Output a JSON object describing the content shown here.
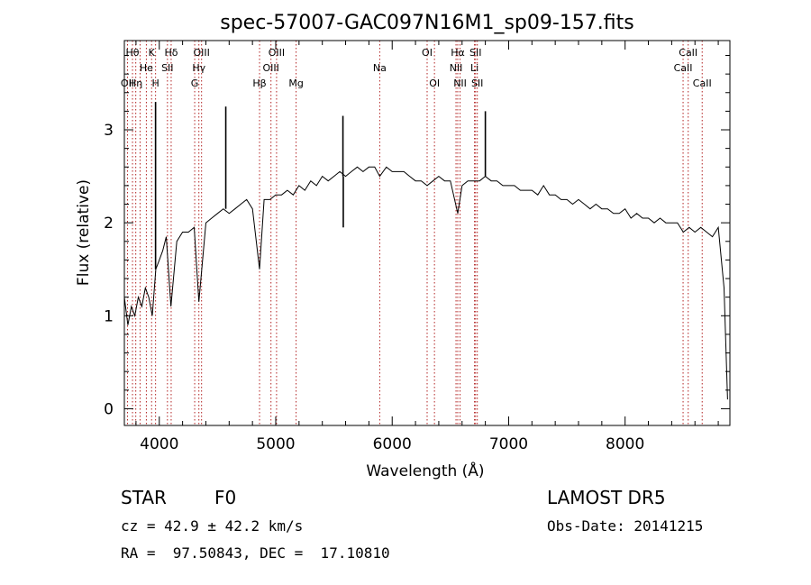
{
  "chart_data": {
    "type": "line",
    "title": "spec-57007-GAC097N16M1_sp09-157.fits",
    "xlabel": "Wavelength (Å)",
    "ylabel": "Flux (relative)",
    "xlim": [
      3700,
      8900
    ],
    "ylim": [
      -0.18,
      3.96
    ],
    "xticks": [
      4000,
      5000,
      6000,
      7000,
      8000
    ],
    "yticks": [
      0,
      1,
      2,
      3
    ],
    "grid": false,
    "line_color": "#000000",
    "marker_color": "#b22222",
    "series": [
      {
        "x": [
          3700,
          3730,
          3760,
          3790,
          3820,
          3850,
          3880,
          3910,
          3940,
          3970,
          4000,
          4030,
          4060,
          4100,
          4150,
          4200,
          4250,
          4300,
          4340,
          4400,
          4450,
          4500,
          4550,
          4600,
          4650,
          4700,
          4750,
          4800,
          4861,
          4900,
          4950,
          5000,
          5050,
          5100,
          5150,
          5200,
          5250,
          5300,
          5350,
          5400,
          5450,
          5500,
          5550,
          5600,
          5650,
          5700,
          5750,
          5800,
          5850,
          5893,
          5950,
          6000,
          6050,
          6100,
          6150,
          6200,
          6250,
          6300,
          6350,
          6400,
          6450,
          6500,
          6563,
          6600,
          6650,
          6700,
          6750,
          6800,
          6850,
          6900,
          6950,
          7000,
          7050,
          7100,
          7150,
          7200,
          7250,
          7300,
          7350,
          7400,
          7450,
          7500,
          7550,
          7600,
          7650,
          7700,
          7750,
          7800,
          7850,
          7900,
          7950,
          8000,
          8050,
          8100,
          8150,
          8200,
          8250,
          8300,
          8350,
          8400,
          8450,
          8500,
          8550,
          8600,
          8650,
          8700,
          8750,
          8800,
          8850,
          8880
        ],
        "y": [
          1.2,
          0.9,
          1.1,
          1.0,
          1.2,
          1.1,
          1.3,
          1.2,
          1.0,
          1.5,
          1.6,
          1.7,
          1.85,
          1.1,
          1.8,
          1.9,
          1.9,
          1.95,
          1.15,
          2.0,
          2.05,
          2.1,
          2.15,
          2.1,
          2.15,
          2.2,
          2.25,
          2.15,
          1.5,
          2.25,
          2.25,
          2.3,
          2.3,
          2.35,
          2.3,
          2.4,
          2.35,
          2.45,
          2.4,
          2.5,
          2.45,
          2.5,
          2.55,
          2.5,
          2.55,
          2.6,
          2.55,
          2.6,
          2.6,
          2.5,
          2.6,
          2.55,
          2.55,
          2.55,
          2.5,
          2.45,
          2.45,
          2.4,
          2.45,
          2.5,
          2.45,
          2.45,
          2.1,
          2.4,
          2.45,
          2.45,
          2.45,
          2.5,
          2.45,
          2.45,
          2.4,
          2.4,
          2.4,
          2.35,
          2.35,
          2.35,
          2.3,
          2.4,
          2.3,
          2.3,
          2.25,
          2.25,
          2.2,
          2.25,
          2.2,
          2.15,
          2.2,
          2.15,
          2.15,
          2.1,
          2.1,
          2.15,
          2.05,
          2.1,
          2.05,
          2.05,
          2.0,
          2.05,
          2.0,
          2.0,
          2.0,
          1.9,
          1.95,
          1.9,
          1.95,
          1.9,
          1.85,
          1.95,
          1.3,
          0.1
        ]
      }
    ],
    "spikes": [
      {
        "x": 4571,
        "y": 3.25
      },
      {
        "x": 5577,
        "y": 3.15
      },
      {
        "x": 5580,
        "y": 1.95
      },
      {
        "x": 6800,
        "y": 3.2
      },
      {
        "x": 3968,
        "y": 3.3
      }
    ],
    "lines": [
      {
        "x": 3727,
        "label": "OII",
        "row": 2
      },
      {
        "x": 3770,
        "label": "Hθ",
        "row": 0
      },
      {
        "x": 3798,
        "label": "Hη",
        "row": 2
      },
      {
        "x": 3835,
        "label": "",
        "row": 0
      },
      {
        "x": 3889,
        "label": "He",
        "row": 1
      },
      {
        "x": 3934,
        "label": "K",
        "row": 0
      },
      {
        "x": 3968,
        "label": "H",
        "row": 2
      },
      {
        "x": 4070,
        "label": "SII",
        "row": 1
      },
      {
        "x": 4102,
        "label": "Hδ",
        "row": 0
      },
      {
        "x": 4304,
        "label": "G",
        "row": 2
      },
      {
        "x": 4340,
        "label": "Hγ",
        "row": 1
      },
      {
        "x": 4363,
        "label": "OIII",
        "row": 0
      },
      {
        "x": 4861,
        "label": "Hβ",
        "row": 2
      },
      {
        "x": 4959,
        "label": "OIII",
        "row": 1
      },
      {
        "x": 5007,
        "label": "OIII",
        "row": 0
      },
      {
        "x": 5175,
        "label": "Mg",
        "row": 2
      },
      {
        "x": 5893,
        "label": "Na",
        "row": 1
      },
      {
        "x": 6300,
        "label": "OI",
        "row": 0
      },
      {
        "x": 6363,
        "label": "OI",
        "row": 2
      },
      {
        "x": 6548,
        "label": "NII",
        "row": 1
      },
      {
        "x": 6563,
        "label": "Hα",
        "row": 0
      },
      {
        "x": 6583,
        "label": "NII",
        "row": 2
      },
      {
        "x": 6716,
        "label": "SII",
        "row": 0
      },
      {
        "x": 6707,
        "label": "Li",
        "row": 1
      },
      {
        "x": 6731,
        "label": "SII",
        "row": 2
      },
      {
        "x": 8498,
        "label": "CaII",
        "row": 1
      },
      {
        "x": 8542,
        "label": "CaII",
        "row": 0
      },
      {
        "x": 8662,
        "label": "CaII",
        "row": 2
      }
    ]
  },
  "info": {
    "class_label": "STAR",
    "subclass": "F0",
    "survey": "LAMOST DR5",
    "cz": "cz = 42.9 ± 42.2 km/s",
    "obs_date": "Obs-Date: 20141215",
    "coords": "RA =  97.50843, DEC =  17.10810"
  }
}
